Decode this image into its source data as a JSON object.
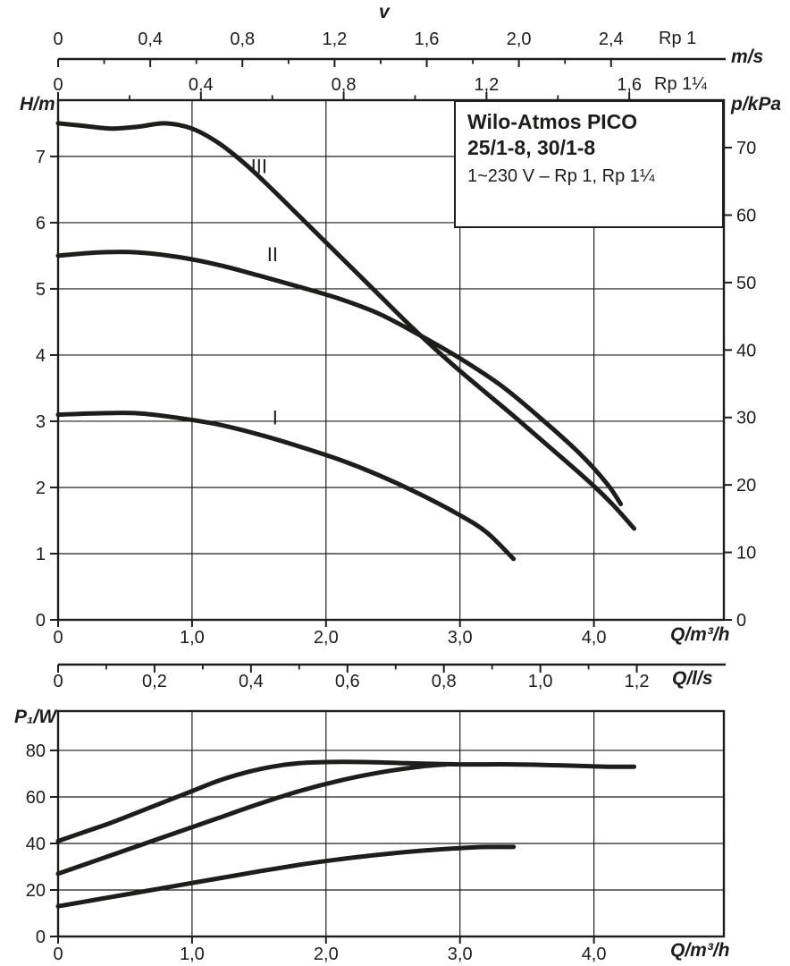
{
  "page": {
    "background": "#ffffff",
    "ink": "#1d1d1b"
  },
  "legend": {
    "title_line1": "Wilo-Atmos PICO",
    "title_line2": "25/1-8, 30/1-8",
    "subtitle": "1~230 V – Rp 1, Rp 1¼"
  },
  "labels": {
    "v": "v",
    "ms": "m/s",
    "rp1": "Rp 1",
    "rp114": "Rp 1¼",
    "head": "H/m",
    "pressure": "p/kPa",
    "flow_m3h_main": "Q/m³/h",
    "flow_ls": "Q/l/s",
    "power": "P₁/W",
    "flow_m3h_bottom": "Q/m³/h"
  },
  "chart_data": [
    {
      "type": "line",
      "title": "Wilo-Atmos PICO 25/1-8, 30/1-8",
      "xlabel": "Q/m³/h",
      "ylabel": "H/m",
      "y2label": "p/kPa",
      "xlim": [
        0,
        4.97
      ],
      "ylim": [
        0,
        7.85
      ],
      "y2_to_y": 0.1019,
      "grid": true,
      "legend_position": "top-right",
      "x_ticks": [
        {
          "v": 0,
          "label": "0"
        },
        {
          "v": 1,
          "label": "1,0"
        },
        {
          "v": 2,
          "label": "2,0"
        },
        {
          "v": 3,
          "label": "3,0"
        },
        {
          "v": 4,
          "label": "4,0"
        }
      ],
      "y_ticks": [
        {
          "v": 0,
          "label": "0"
        },
        {
          "v": 1,
          "label": "1"
        },
        {
          "v": 2,
          "label": "2"
        },
        {
          "v": 3,
          "label": "3"
        },
        {
          "v": 4,
          "label": "4"
        },
        {
          "v": 5,
          "label": "5"
        },
        {
          "v": 6,
          "label": "6"
        },
        {
          "v": 7,
          "label": "7"
        }
      ],
      "y2_ticks": [
        {
          "v": 0,
          "label": "0"
        },
        {
          "v": 10,
          "label": "10"
        },
        {
          "v": 20,
          "label": "20"
        },
        {
          "v": 30,
          "label": "30"
        },
        {
          "v": 40,
          "label": "40"
        },
        {
          "v": 50,
          "label": "50"
        },
        {
          "v": 60,
          "label": "60"
        },
        {
          "v": 70,
          "label": "70"
        }
      ],
      "secondary_x_axes": [
        {
          "name": "velocity-rp1",
          "label": "Rp 1",
          "unit": "m/s",
          "q_per_unit": 1.72,
          "minor_step": 0.2,
          "ticks": [
            {
              "v": 0,
              "label": "0"
            },
            {
              "v": 0.4,
              "label": "0,4"
            },
            {
              "v": 0.8,
              "label": "0,8"
            },
            {
              "v": 1.2,
              "label": "1,2"
            },
            {
              "v": 1.6,
              "label": "1,6"
            },
            {
              "v": 2.0,
              "label": "2,0"
            },
            {
              "v": 2.4,
              "label": "2,4"
            }
          ]
        },
        {
          "name": "velocity-rp114",
          "label": "Rp 1¼",
          "unit": "m/s",
          "q_per_unit": 2.665,
          "minor_step": 0.2,
          "ticks": [
            {
              "v": 0,
              "label": "0"
            },
            {
              "v": 0.4,
              "label": "0,4"
            },
            {
              "v": 0.8,
              "label": "0,8"
            },
            {
              "v": 1.2,
              "label": "1,2"
            },
            {
              "v": 1.6,
              "label": "1,6"
            }
          ]
        },
        {
          "name": "flow-ls",
          "label": "Q/l/s",
          "unit": "l/s",
          "q_per_unit": 3.6,
          "minor_step": 0.1,
          "ticks": [
            {
              "v": 0,
              "label": "0"
            },
            {
              "v": 0.2,
              "label": "0,2"
            },
            {
              "v": 0.4,
              "label": "0,4"
            },
            {
              "v": 0.6,
              "label": "0,6"
            },
            {
              "v": 0.8,
              "label": "0,8"
            },
            {
              "v": 1.0,
              "label": "1,0"
            },
            {
              "v": 1.2,
              "label": "1,2"
            }
          ]
        }
      ],
      "series": [
        {
          "name": "III",
          "label_pos": [
            1.5,
            6.75
          ],
          "points": [
            [
              0,
              7.5
            ],
            [
              0.2,
              7.46
            ],
            [
              0.4,
              7.42
            ],
            [
              0.6,
              7.45
            ],
            [
              0.8,
              7.5
            ],
            [
              1.0,
              7.42
            ],
            [
              1.2,
              7.2
            ],
            [
              1.4,
              6.88
            ],
            [
              1.6,
              6.5
            ],
            [
              1.8,
              6.1
            ],
            [
              2.0,
              5.7
            ],
            [
              2.2,
              5.3
            ],
            [
              2.4,
              4.9
            ],
            [
              2.6,
              4.5
            ],
            [
              2.8,
              4.12
            ],
            [
              3.0,
              3.76
            ],
            [
              3.2,
              3.42
            ],
            [
              3.4,
              3.08
            ],
            [
              3.6,
              2.73
            ],
            [
              3.8,
              2.38
            ],
            [
              4.0,
              2.02
            ],
            [
              4.15,
              1.72
            ],
            [
              4.3,
              1.38
            ]
          ]
        },
        {
          "name": "II",
          "label_pos": [
            1.6,
            5.42
          ],
          "points": [
            [
              0,
              5.5
            ],
            [
              0.3,
              5.55
            ],
            [
              0.6,
              5.55
            ],
            [
              0.9,
              5.48
            ],
            [
              1.2,
              5.36
            ],
            [
              1.5,
              5.2
            ],
            [
              1.8,
              5.03
            ],
            [
              2.1,
              4.85
            ],
            [
              2.4,
              4.62
            ],
            [
              2.7,
              4.3
            ],
            [
              3.0,
              3.95
            ],
            [
              3.3,
              3.55
            ],
            [
              3.6,
              3.05
            ],
            [
              3.9,
              2.5
            ],
            [
              4.1,
              2.05
            ],
            [
              4.2,
              1.75
            ]
          ]
        },
        {
          "name": "I",
          "label_pos": [
            1.62,
            2.95
          ],
          "points": [
            [
              0,
              3.1
            ],
            [
              0.3,
              3.12
            ],
            [
              0.6,
              3.12
            ],
            [
              0.9,
              3.05
            ],
            [
              1.2,
              2.95
            ],
            [
              1.5,
              2.8
            ],
            [
              1.8,
              2.62
            ],
            [
              2.1,
              2.42
            ],
            [
              2.4,
              2.18
            ],
            [
              2.7,
              1.9
            ],
            [
              3.0,
              1.58
            ],
            [
              3.2,
              1.32
            ],
            [
              3.4,
              0.92
            ]
          ]
        }
      ]
    },
    {
      "type": "line",
      "title": "",
      "xlabel": "Q/m³/h",
      "ylabel": "P₁/W",
      "xlim": [
        0,
        4.97
      ],
      "ylim": [
        0,
        96.9
      ],
      "grid": true,
      "x_ticks": [
        {
          "v": 0,
          "label": "0"
        },
        {
          "v": 1,
          "label": "1,0"
        },
        {
          "v": 2,
          "label": "2,0"
        },
        {
          "v": 3,
          "label": "3,0"
        },
        {
          "v": 4,
          "label": "4,0"
        }
      ],
      "y_ticks": [
        {
          "v": 0,
          "label": "0"
        },
        {
          "v": 20,
          "label": "20"
        },
        {
          "v": 40,
          "label": "40"
        },
        {
          "v": 60,
          "label": "60"
        },
        {
          "v": 80,
          "label": "80"
        }
      ],
      "series": [
        {
          "name": "III",
          "points": [
            [
              0,
              41
            ],
            [
              0.2,
              45
            ],
            [
              0.4,
              49
            ],
            [
              0.6,
              53.5
            ],
            [
              0.8,
              58
            ],
            [
              1.0,
              62.5
            ],
            [
              1.2,
              67
            ],
            [
              1.4,
              70.5
            ],
            [
              1.6,
              73
            ],
            [
              1.8,
              74.5
            ],
            [
              2.0,
              75
            ],
            [
              2.3,
              75
            ],
            [
              2.6,
              74.5
            ],
            [
              3.0,
              74
            ],
            [
              3.4,
              74
            ],
            [
              3.8,
              73.5
            ],
            [
              4.1,
              73
            ],
            [
              4.3,
              73
            ]
          ]
        },
        {
          "name": "II",
          "points": [
            [
              0,
              27
            ],
            [
              0.3,
              33
            ],
            [
              0.6,
              39
            ],
            [
              0.9,
              45
            ],
            [
              1.2,
              51
            ],
            [
              1.5,
              57
            ],
            [
              1.8,
              62.5
            ],
            [
              2.1,
              67
            ],
            [
              2.4,
              70.5
            ],
            [
              2.7,
              73
            ],
            [
              2.9,
              74
            ]
          ]
        },
        {
          "name": "I",
          "points": [
            [
              0,
              13
            ],
            [
              0.3,
              16
            ],
            [
              0.6,
              19
            ],
            [
              0.9,
              22
            ],
            [
              1.2,
              25
            ],
            [
              1.5,
              28
            ],
            [
              1.8,
              30.8
            ],
            [
              2.1,
              33.2
            ],
            [
              2.4,
              35.2
            ],
            [
              2.7,
              36.8
            ],
            [
              3.0,
              38
            ],
            [
              3.2,
              38.5
            ],
            [
              3.4,
              38.5
            ]
          ]
        }
      ]
    }
  ]
}
